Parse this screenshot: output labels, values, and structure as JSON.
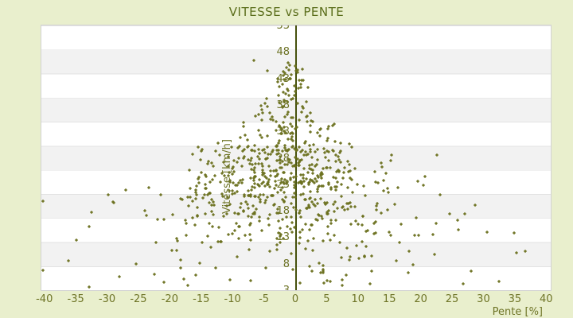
{
  "title": "VITESSE vs PENTE",
  "colors": {
    "page_background": "#e9efcd",
    "band_light": "#ffffff",
    "band_dark": "#f2f2f2",
    "band_edge": "#e3e3e3",
    "axis_text": "#6e7426",
    "title_text": "#5a6d1a",
    "marker": "#6a701d",
    "zero_line": "#46510d",
    "plot_border": "#d2d2d2"
  },
  "chart_data": {
    "type": "scatter",
    "title": "VITESSE vs PENTE",
    "xlabel": "Pente [%]",
    "ylabel": "Vitesse [km/h]",
    "xlim": [
      -40.6,
      40.6
    ],
    "ylim": [
      3,
      53
    ],
    "x_ticks": [
      -40,
      -35,
      -30,
      -25,
      -20,
      -15,
      -10,
      -5,
      0,
      5,
      10,
      15,
      20,
      25,
      30,
      35,
      40
    ],
    "y_ticks": [
      53,
      48,
      43,
      38,
      33,
      28,
      23,
      18,
      13,
      8,
      3
    ],
    "grid": "alternating-horizontal-bands",
    "legend": "none",
    "marker_shape": "diamond",
    "axis_line": "vertical line at x = 0 spanning full y range",
    "n_points": 780,
    "seed": 1369,
    "generator": {
      "comment": "point cloud is cone shaped: wide slope spread at low speed, narrow near max speed, slightly shifted to negative slopes",
      "v_min": 3.5,
      "v_max": 46,
      "bell_share": 0.68,
      "bell_lo": 6,
      "bell_hi": 40,
      "uni_lo": 3.5,
      "uni_hi": 46,
      "w_base": 2,
      "w_scale": 32,
      "w_ref": 42.5,
      "w_pow": 1.35,
      "cx_base": -1,
      "cx_slope": 0.055,
      "tri_mult": 1.15,
      "outlier_p": 0.08,
      "outlier_mult": 3,
      "s_clamp": 40.4
    },
    "fixed_points": [
      [
        -40.4,
        19.8
      ],
      [
        35.2,
        10.0
      ],
      [
        30.4,
        14.0
      ],
      [
        26.9,
        17.4
      ],
      [
        25.9,
        14.4
      ],
      [
        28.5,
        19.0
      ],
      [
        -35.0,
        12.5
      ],
      [
        -36.3,
        8.6
      ],
      [
        -33.0,
        15.0
      ],
      [
        19.5,
        13.4
      ],
      [
        23.0,
        21.0
      ],
      [
        -30.0,
        21.0
      ],
      [
        34.8,
        13.8
      ],
      [
        20.5,
        24.5
      ],
      [
        22.5,
        28.5
      ],
      [
        -6.7,
        46.4
      ],
      [
        -4.6,
        44.4
      ],
      [
        -2.0,
        43.5
      ],
      [
        16.0,
        8.5
      ],
      [
        -25.5,
        8.0
      ]
    ]
  }
}
